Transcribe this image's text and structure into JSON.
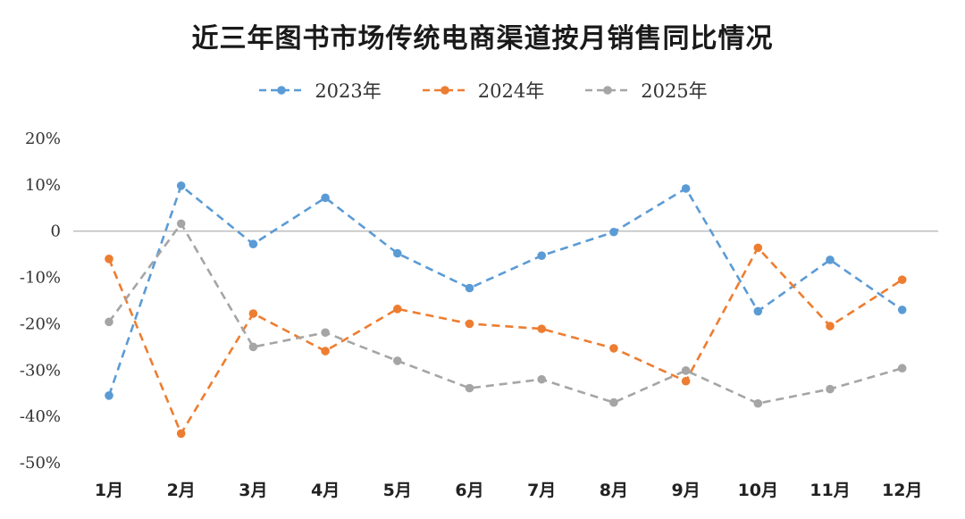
{
  "chart_data": {
    "type": "line",
    "title": "近三年图书市场传统电商渠道按月销售同比情况",
    "categories": [
      "1月",
      "2月",
      "3月",
      "4月",
      "5月",
      "6月",
      "7月",
      "8月",
      "9月",
      "10月",
      "11月",
      "12月"
    ],
    "y_ticks": [
      "20%",
      "10%",
      "0",
      "-10%",
      "-20%",
      "-30%",
      "-40%",
      "-50%"
    ],
    "ylim": [
      -50,
      20
    ],
    "legend_position": "top-center",
    "series": [
      {
        "name": "2023年",
        "color": "#5b9bd5",
        "values": [
          -35.5,
          9.8,
          -2.8,
          7.2,
          -4.8,
          -12.3,
          -5.3,
          -0.2,
          9.2,
          -17.3,
          -6.2,
          -17.0
        ]
      },
      {
        "name": "2024年",
        "color": "#ed7d31",
        "values": [
          -6.0,
          -43.7,
          -17.8,
          -25.9,
          -16.8,
          -20.0,
          -21.1,
          -25.3,
          -32.4,
          -3.6,
          -20.5,
          -10.5
        ]
      },
      {
        "name": "2025年",
        "color": "#a5a5a5",
        "values": [
          -19.6,
          1.6,
          -25.0,
          -21.9,
          -28.0,
          -33.9,
          -32.0,
          -37.0,
          -30.1,
          -37.2,
          -34.1,
          -29.6
        ]
      }
    ]
  }
}
